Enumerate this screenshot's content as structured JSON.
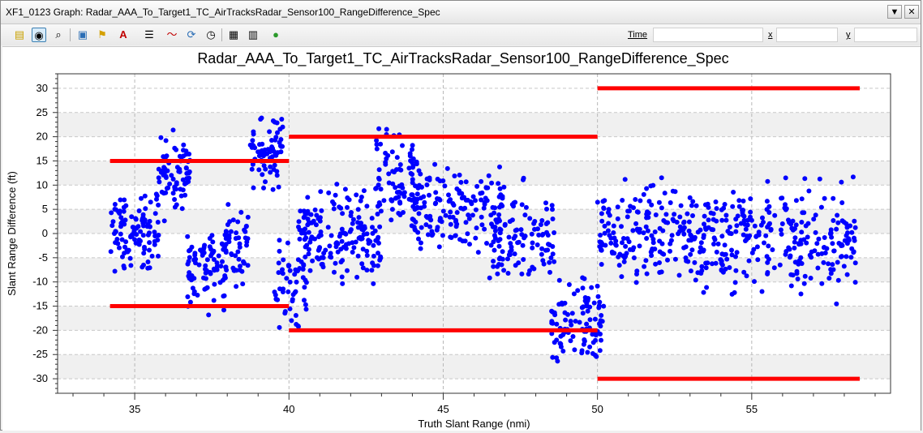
{
  "window": {
    "title": "XF1_0123 Graph: Radar_AAA_To_Target1_TC_AirTracksRadar_Sensor100_RangeDifference_Spec",
    "dropdown_glyph": "▼",
    "close_glyph": "✕"
  },
  "toolbar": {
    "icons": [
      "notes-icon",
      "pointer-select-icon",
      "zoom-icon",
      "camera-icon",
      "flag-icon",
      "font-icon",
      "legend-icon",
      "line-style-icon",
      "refresh-icon",
      "timer-icon",
      "table-icon",
      "grid-icon",
      "go-icon"
    ],
    "time_label": "Time",
    "x_label": "x",
    "y_label": "y"
  },
  "chart_data": {
    "type": "scatter",
    "title": "Radar_AAA_To_Target1_TC_AirTracksRadar_Sensor100_RangeDifference_Spec",
    "xlabel": "Truth Slant Range (nmi)",
    "ylabel": "Slant Range Difference (ft)",
    "xlim": [
      32.5,
      59.5
    ],
    "ylim": [
      -33,
      33
    ],
    "xticks": [
      35,
      40,
      45,
      50,
      55
    ],
    "yticks": [
      30,
      25,
      20,
      15,
      10,
      5,
      0,
      -5,
      -10,
      -15,
      -20,
      -25,
      -30
    ],
    "grid": true,
    "colors": {
      "points": "#0000ff",
      "limits": "#ff0000",
      "band": "#f0f0f0"
    },
    "limit_segments": [
      {
        "x": [
          34.2,
          40.0
        ],
        "y": 15
      },
      {
        "x": [
          34.2,
          40.0
        ],
        "y": -15
      },
      {
        "x": [
          40.0,
          50.0
        ],
        "y": 20
      },
      {
        "x": [
          40.0,
          50.0
        ],
        "y": -20
      },
      {
        "x": [
          50.0,
          58.5
        ],
        "y": 30
      },
      {
        "x": [
          50.0,
          58.5
        ],
        "y": -30
      }
    ],
    "clusters": [
      {
        "x_range": [
          34.2,
          35.8
        ],
        "y_center": 0,
        "y_spread": 8,
        "count": 110
      },
      {
        "x_range": [
          35.7,
          36.8
        ],
        "y_center": 12,
        "y_spread": 9,
        "count": 75
      },
      {
        "x_range": [
          36.7,
          38.0
        ],
        "y_center": -7,
        "y_spread": 9,
        "count": 80
      },
      {
        "x_range": [
          37.8,
          38.7
        ],
        "y_center": -2,
        "y_spread": 8,
        "count": 55
      },
      {
        "x_range": [
          38.7,
          39.8
        ],
        "y_center": 17,
        "y_spread": 8,
        "count": 70
      },
      {
        "x_range": [
          39.5,
          40.6
        ],
        "y_center": -10,
        "y_spread": 10,
        "count": 55
      },
      {
        "x_range": [
          40.3,
          43.0
        ],
        "y_center": -1,
        "y_spread": 10,
        "count": 170
      },
      {
        "x_range": [
          42.8,
          44.2
        ],
        "y_center": 10,
        "y_spread": 12,
        "count": 90
      },
      {
        "x_range": [
          44.0,
          47.0
        ],
        "y_center": 5,
        "y_spread": 10,
        "count": 150
      },
      {
        "x_range": [
          46.5,
          48.6
        ],
        "y_center": -1,
        "y_spread": 11,
        "count": 110
      },
      {
        "x_range": [
          48.5,
          50.2
        ],
        "y_center": -18,
        "y_spread": 9,
        "count": 100
      },
      {
        "x_range": [
          50.0,
          54.0
        ],
        "y_center": 0,
        "y_spread": 12,
        "count": 220
      },
      {
        "x_range": [
          54.0,
          58.4
        ],
        "y_center": -1,
        "y_spread": 12,
        "count": 240
      }
    ]
  }
}
